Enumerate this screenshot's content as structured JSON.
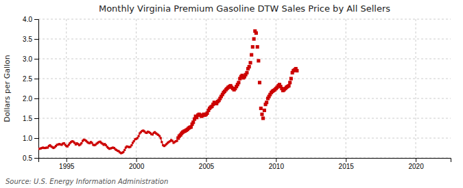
{
  "chart_data": {
    "type": "line",
    "title": "Monthly Virginia Premium Gasoline DTW Sales Price by All Sellers",
    "ylabel": "Dollars per Gallon",
    "annotations": [
      "Source: U.S. Energy Information Administration"
    ],
    "xlim": [
      1993.0,
      2022.5
    ],
    "ylim": [
      0.5,
      4.0
    ],
    "xticks": [
      1995,
      2000,
      2005,
      2010,
      2015,
      2020
    ],
    "yticks": [
      0.5,
      {
        "value": 1.0,
        "label": "1.0"
      },
      1.5,
      {
        "value": 2.0,
        "label": "2.0"
      },
      2.5,
      {
        "value": 3.0,
        "label": "3.0"
      },
      3.5,
      {
        "value": 4.0,
        "label": "4.0"
      }
    ],
    "grid": true,
    "legend": false,
    "series": [
      {
        "type": "line",
        "marker": "square",
        "color": "#cc0000",
        "x": [
          1993.08,
          1993.17,
          1993.25,
          1993.33,
          1993.42,
          1993.5,
          1993.58,
          1993.67,
          1993.75,
          1993.83,
          1993.92,
          1994.0,
          1994.08,
          1994.17,
          1994.25,
          1994.33,
          1994.42,
          1994.5,
          1994.58,
          1994.67,
          1994.75,
          1994.83,
          1994.92,
          1995.0,
          1995.08,
          1995.17,
          1995.25,
          1995.33,
          1995.42,
          1995.5,
          1995.58,
          1995.67,
          1995.75,
          1995.83,
          1995.92,
          1996.0,
          1996.08,
          1996.17,
          1996.25,
          1996.33,
          1996.42,
          1996.5,
          1996.58,
          1996.67,
          1996.75,
          1996.83,
          1996.92,
          1997.0,
          1997.08,
          1997.17,
          1997.25,
          1997.33,
          1997.42,
          1997.5,
          1997.58,
          1997.67,
          1997.75,
          1997.83,
          1997.92,
          1998.0,
          1998.08,
          1998.17,
          1998.25,
          1998.33,
          1998.42,
          1998.5,
          1998.58,
          1998.67,
          1998.75,
          1998.83,
          1998.92,
          1999.0,
          1999.08,
          1999.17,
          1999.25,
          1999.33,
          1999.42,
          1999.5,
          1999.58,
          1999.67,
          1999.75,
          1999.83,
          1999.92,
          2000.0,
          2000.08,
          2000.17,
          2000.25,
          2000.33,
          2000.42,
          2000.5,
          2000.58,
          2000.67,
          2000.75,
          2000.83,
          2000.92,
          2001.0,
          2001.08,
          2001.17,
          2001.25,
          2001.33,
          2001.42,
          2001.5,
          2001.58,
          2001.67,
          2001.75,
          2001.83,
          2001.92,
          2002.0,
          2002.08,
          2002.17,
          2002.25,
          2002.33,
          2002.42,
          2002.5,
          2002.58,
          2002.67,
          2002.75,
          2002.83,
          2002.92
        ],
        "values": [
          0.73,
          0.74,
          0.75,
          0.76,
          0.75,
          0.75,
          0.76,
          0.76,
          0.8,
          0.82,
          0.79,
          0.77,
          0.75,
          0.77,
          0.8,
          0.83,
          0.84,
          0.85,
          0.84,
          0.83,
          0.86,
          0.87,
          0.83,
          0.8,
          0.79,
          0.83,
          0.87,
          0.9,
          0.92,
          0.91,
          0.88,
          0.84,
          0.87,
          0.85,
          0.82,
          0.84,
          0.87,
          0.93,
          0.96,
          0.95,
          0.93,
          0.9,
          0.88,
          0.87,
          0.9,
          0.88,
          0.83,
          0.82,
          0.83,
          0.86,
          0.88,
          0.9,
          0.91,
          0.88,
          0.86,
          0.83,
          0.85,
          0.82,
          0.78,
          0.75,
          0.73,
          0.74,
          0.75,
          0.76,
          0.75,
          0.72,
          0.7,
          0.68,
          0.67,
          0.64,
          0.62,
          0.63,
          0.65,
          0.7,
          0.76,
          0.79,
          0.78,
          0.77,
          0.78,
          0.82,
          0.88,
          0.92,
          0.97,
          0.98,
          1.0,
          1.05,
          1.12,
          1.15,
          1.18,
          1.19,
          1.17,
          1.14,
          1.13,
          1.16,
          1.15,
          1.13,
          1.1,
          1.09,
          1.13,
          1.15,
          1.12,
          1.1,
          1.08,
          1.05,
          1.0,
          0.9,
          0.82,
          0.8,
          0.82,
          0.85,
          0.88,
          0.9,
          0.92,
          0.95,
          0.93,
          0.88,
          0.9,
          0.92,
          0.93
        ]
      },
      {
        "type": "scatter",
        "marker": "square",
        "color": "#cc0000",
        "x": [
          2003.0,
          2003.08,
          2003.17,
          2003.25,
          2003.33,
          2003.42,
          2003.5,
          2003.58,
          2003.67,
          2003.75,
          2003.83,
          2003.92,
          2004.0,
          2004.08,
          2004.17,
          2004.25,
          2004.33,
          2004.42,
          2004.5,
          2004.58,
          2004.67,
          2004.75,
          2004.83,
          2004.92,
          2005.0,
          2005.08,
          2005.17,
          2005.25,
          2005.33,
          2005.42,
          2005.5,
          2005.58,
          2005.67,
          2005.75,
          2005.83,
          2005.92,
          2006.0,
          2006.08,
          2006.17,
          2006.25,
          2006.33,
          2006.42,
          2006.5,
          2006.58,
          2006.67,
          2006.75,
          2006.83,
          2006.92,
          2007.0,
          2007.08,
          2007.17,
          2007.25,
          2007.33,
          2007.42,
          2007.5,
          2007.58,
          2007.67,
          2007.75,
          2007.83,
          2007.92,
          2008.0,
          2008.08,
          2008.17,
          2008.25,
          2008.33,
          2008.42,
          2008.5,
          2008.58,
          2008.67,
          2008.75,
          2008.83,
          2008.92,
          2009.0,
          2009.08,
          2009.17,
          2009.25,
          2009.33,
          2009.42,
          2009.5,
          2009.58,
          2009.67,
          2009.75,
          2009.83,
          2009.92,
          2010.0,
          2010.08,
          2010.17,
          2010.25,
          2010.33,
          2010.42,
          2010.5,
          2010.58,
          2010.67,
          2010.75,
          2010.83,
          2010.92,
          2011.0,
          2011.08,
          2011.17,
          2011.25,
          2011.33,
          2011.42,
          2011.5
        ],
        "values": [
          1.0,
          1.05,
          1.08,
          1.12,
          1.15,
          1.17,
          1.18,
          1.2,
          1.22,
          1.25,
          1.27,
          1.28,
          1.35,
          1.4,
          1.48,
          1.55,
          1.52,
          1.58,
          1.6,
          1.58,
          1.55,
          1.57,
          1.6,
          1.58,
          1.6,
          1.63,
          1.7,
          1.75,
          1.78,
          1.8,
          1.85,
          1.9,
          1.88,
          1.87,
          1.92,
          1.95,
          2.0,
          2.05,
          2.1,
          2.15,
          2.18,
          2.22,
          2.25,
          2.28,
          2.3,
          2.32,
          2.28,
          2.25,
          2.22,
          2.25,
          2.3,
          2.35,
          2.4,
          2.5,
          2.55,
          2.58,
          2.52,
          2.55,
          2.6,
          2.65,
          2.75,
          2.8,
          2.9,
          3.1,
          3.3,
          3.5,
          3.7,
          3.65,
          3.3,
          2.95,
          2.4,
          1.75,
          1.6,
          1.5,
          1.7,
          1.85,
          1.9,
          2.0,
          2.05,
          2.1,
          2.15,
          2.18,
          2.2,
          2.22,
          2.25,
          2.28,
          2.32,
          2.35,
          2.3,
          2.25,
          2.2,
          2.22,
          2.25,
          2.28,
          2.3,
          2.32,
          2.4,
          2.5,
          2.65,
          2.7,
          2.72,
          2.75,
          2.7
        ]
      }
    ]
  }
}
